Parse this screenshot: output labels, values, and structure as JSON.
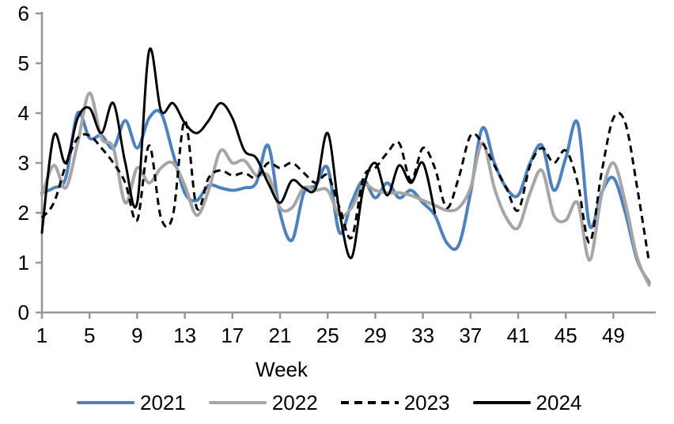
{
  "chart_data": {
    "type": "line",
    "title": "",
    "xlabel": "Week",
    "ylabel": "",
    "ylim": [
      0,
      6
    ],
    "grid": false,
    "legend_position": "bottom",
    "axis_color": "#969696",
    "text_color": "#000000",
    "x_ticks": [
      1,
      5,
      9,
      13,
      17,
      21,
      25,
      29,
      33,
      37,
      41,
      45,
      49
    ],
    "y_ticks": [
      0,
      1,
      2,
      3,
      4,
      5,
      6
    ],
    "x_start_week": 1,
    "series": [
      {
        "name": "2021",
        "color": "#4f81bd",
        "style": "solid",
        "values": [
          2.4,
          2.5,
          2.7,
          4.0,
          3.5,
          3.55,
          3.3,
          3.85,
          3.3,
          3.9,
          4.0,
          3.2,
          2.4,
          2.25,
          2.55,
          2.5,
          2.45,
          2.5,
          2.6,
          3.35,
          2.0,
          1.45,
          2.4,
          2.55,
          2.9,
          1.6,
          2.2,
          2.65,
          2.3,
          2.6,
          2.3,
          2.45,
          2.2,
          1.95,
          1.4,
          1.35,
          2.4,
          3.7,
          3.0,
          2.5,
          2.35,
          3.0,
          3.35,
          2.45,
          3.1,
          3.8,
          1.75,
          2.4,
          2.7,
          2.0,
          1.05,
          0.6
        ]
      },
      {
        "name": "2022",
        "color": "#a6a6a6",
        "style": "solid",
        "values": [
          2.35,
          2.95,
          2.5,
          3.4,
          4.4,
          3.5,
          3.3,
          2.2,
          2.9,
          2.6,
          2.9,
          3.0,
          2.55,
          1.95,
          2.45,
          3.25,
          3.0,
          3.05,
          2.75,
          2.75,
          2.1,
          2.1,
          2.5,
          2.45,
          2.45,
          1.95,
          2.1,
          2.55,
          2.45,
          2.4,
          2.4,
          2.35,
          2.25,
          2.15,
          2.05,
          2.1,
          2.5,
          3.4,
          2.5,
          1.9,
          1.7,
          2.4,
          2.85,
          1.95,
          1.85,
          2.2,
          1.05,
          2.35,
          3.0,
          2.2,
          1.1,
          0.55
        ]
      },
      {
        "name": "2023",
        "color": "#000000",
        "style": "dashed",
        "values": [
          1.9,
          2.2,
          2.95,
          3.5,
          3.55,
          3.3,
          3.0,
          2.6,
          1.85,
          3.35,
          1.9,
          1.95,
          3.85,
          2.1,
          2.7,
          2.85,
          2.75,
          2.8,
          2.7,
          3.0,
          2.9,
          3.0,
          2.8,
          2.6,
          2.75,
          2.1,
          1.5,
          2.7,
          2.9,
          3.2,
          3.4,
          2.65,
          3.3,
          2.9,
          2.1,
          2.7,
          3.55,
          3.4,
          2.95,
          2.5,
          2.05,
          2.95,
          3.3,
          3.0,
          3.25,
          2.6,
          1.4,
          2.8,
          3.9,
          3.8,
          2.5,
          1.0
        ]
      },
      {
        "name": "2024",
        "color": "#000000",
        "style": "solid",
        "values": [
          1.6,
          3.55,
          3.0,
          3.9,
          4.1,
          3.6,
          4.2,
          3.0,
          2.2,
          5.25,
          4.05,
          4.2,
          3.8,
          3.6,
          3.85,
          4.2,
          3.9,
          3.25,
          3.1,
          2.6,
          2.2,
          2.65,
          2.5,
          2.5,
          3.6,
          2.0,
          1.1,
          2.5,
          3.0,
          2.35,
          2.95,
          2.6,
          3.0,
          2.0
        ]
      }
    ]
  }
}
